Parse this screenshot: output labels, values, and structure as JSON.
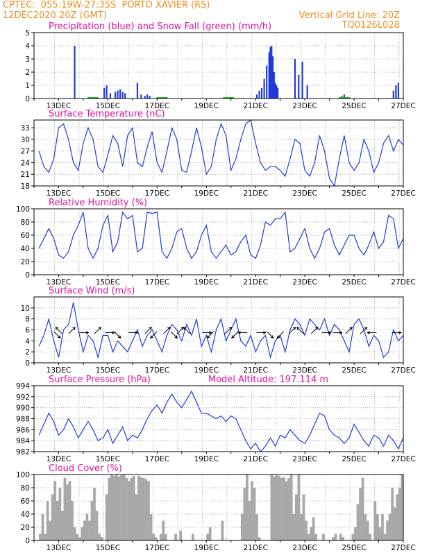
{
  "header": {
    "line1_left": "CPTEC:  055:19W-27:35S  PORTO XAVIER (RS)",
    "line2_left": "12DEC2020 20Z (GMT)",
    "line2_right": "Vertical Grid Line: 20Z",
    "line3_right": "TQ0126L028"
  },
  "colors": {
    "header": "#f08c1e",
    "title": "#e0109f",
    "line": "#1f3bd6",
    "precip": "#1f3bd6",
    "snow": "#22b422",
    "cloud": "#a8a8a8",
    "grid": "#9a9a9a"
  },
  "x_ticks": [
    "13DEC",
    "15DEC",
    "17DEC",
    "19DEC",
    "21DEC",
    "23DEC",
    "25DEC",
    "27DEC"
  ],
  "chart_data": [
    {
      "type": "bar",
      "title": "Precipitation (blue) and Snow Fall (green) (mm/h)",
      "ylim": [
        0,
        5
      ],
      "yticks": [
        0,
        1,
        2,
        3,
        4,
        5
      ],
      "series": [
        {
          "name": "precipitation",
          "x": [
            13.65,
            14.85,
            14.95,
            15.1,
            15.3,
            15.4,
            15.5,
            15.6,
            15.7,
            16.2,
            16.35,
            16.5,
            16.6,
            16.7,
            21.05,
            21.15,
            21.25,
            21.35,
            21.45,
            21.55,
            21.6,
            21.65,
            21.7,
            21.75,
            21.8,
            21.85,
            21.9,
            22.6,
            22.75,
            22.9,
            23.1,
            24.5,
            24.6,
            26.6,
            26.7,
            26.8
          ],
          "values": [
            4.0,
            0.8,
            1.0,
            0.4,
            0.5,
            0.6,
            0.7,
            0.5,
            0.4,
            1.2,
            0.3,
            0.2,
            0.3,
            0.2,
            0.3,
            0.6,
            0.8,
            1.5,
            2.5,
            3.5,
            3.9,
            4.0,
            3.2,
            2.0,
            1.2,
            1.0,
            0.8,
            3.0,
            1.8,
            2.8,
            1.0,
            0.2,
            0.3,
            0.6,
            1.0,
            1.2
          ]
        },
        {
          "name": "snow",
          "x": [
            14.4,
            17.2,
            19.9,
            24.6
          ],
          "values": [
            0.05,
            0.05,
            0.05,
            0.05
          ]
        }
      ]
    },
    {
      "type": "line",
      "title": "Surface Temperature (nC)",
      "ylim": [
        18,
        35
      ],
      "yticks": [
        18,
        21,
        24,
        27,
        30,
        33
      ],
      "x": [
        12.2,
        12.4,
        12.6,
        12.8,
        13.0,
        13.2,
        13.4,
        13.6,
        13.8,
        14.0,
        14.2,
        14.4,
        14.6,
        14.8,
        15.0,
        15.2,
        15.4,
        15.6,
        15.8,
        16.0,
        16.2,
        16.4,
        16.6,
        16.8,
        17.0,
        17.2,
        17.4,
        17.6,
        17.8,
        18.0,
        18.2,
        18.4,
        18.6,
        18.8,
        19.0,
        19.2,
        19.4,
        19.6,
        19.8,
        20.0,
        20.2,
        20.4,
        20.6,
        20.8,
        21.0,
        21.2,
        21.4,
        21.6,
        21.8,
        22.0,
        22.2,
        22.4,
        22.6,
        22.8,
        23.0,
        23.2,
        23.4,
        23.6,
        23.8,
        24.0,
        24.2,
        24.4,
        24.6,
        24.8,
        25.0,
        25.2,
        25.4,
        25.6,
        25.8,
        26.0,
        26.2,
        26.4,
        26.6,
        26.8,
        27.0
      ],
      "values": [
        27,
        23,
        21.5,
        25,
        33,
        34,
        30,
        24,
        22,
        29,
        33,
        30,
        23,
        21.5,
        26,
        31,
        29,
        23,
        31,
        33,
        24,
        23,
        28,
        32,
        24,
        21.5,
        27,
        33,
        30,
        22,
        21.5,
        27,
        33,
        28,
        21,
        23,
        30,
        34,
        31,
        22,
        25,
        30,
        34,
        35,
        29,
        24,
        22,
        23,
        23,
        22,
        20.5,
        25,
        30,
        29,
        22,
        20.5,
        24,
        31,
        27,
        20,
        18,
        25,
        31,
        24,
        22,
        24,
        30,
        27,
        21.5,
        24,
        29,
        31,
        27,
        30,
        28.5
      ]
    },
    {
      "type": "line",
      "title": "Relative Humidity (%)",
      "ylim": [
        0,
        100
      ],
      "yticks": [
        0,
        20,
        40,
        60,
        80,
        100
      ],
      "x": [
        12.2,
        12.4,
        12.6,
        12.8,
        13.0,
        13.2,
        13.4,
        13.6,
        13.8,
        14.0,
        14.2,
        14.4,
        14.6,
        14.8,
        15.0,
        15.2,
        15.4,
        15.6,
        15.8,
        16.0,
        16.2,
        16.4,
        16.6,
        16.8,
        17.0,
        17.2,
        17.4,
        17.6,
        17.8,
        18.0,
        18.2,
        18.4,
        18.6,
        18.8,
        19.0,
        19.2,
        19.4,
        19.6,
        19.8,
        20.0,
        20.2,
        20.4,
        20.6,
        20.8,
        21.0,
        21.2,
        21.4,
        21.6,
        21.8,
        22.0,
        22.2,
        22.4,
        22.6,
        22.8,
        23.0,
        23.2,
        23.4,
        23.6,
        23.8,
        24.0,
        24.2,
        24.4,
        24.6,
        24.8,
        25.0,
        25.2,
        25.4,
        25.6,
        25.8,
        26.0,
        26.2,
        26.4,
        26.6,
        26.8,
        27.0
      ],
      "values": [
        40,
        55,
        70,
        55,
        30,
        25,
        35,
        60,
        75,
        95,
        40,
        25,
        40,
        75,
        90,
        35,
        50,
        95,
        85,
        90,
        35,
        40,
        95,
        93,
        95,
        35,
        25,
        40,
        65,
        70,
        40,
        25,
        35,
        60,
        75,
        35,
        25,
        35,
        45,
        30,
        35,
        50,
        60,
        30,
        25,
        45,
        80,
        75,
        85,
        85,
        95,
        35,
        40,
        55,
        70,
        40,
        25,
        40,
        65,
        70,
        45,
        30,
        45,
        60,
        60,
        40,
        30,
        45,
        65,
        40,
        50,
        90,
        85,
        40,
        55
      ]
    },
    {
      "type": "line",
      "title": "Surface Wind (m/s)",
      "ylim": [
        0,
        12
      ],
      "yticks": [
        0,
        2,
        4,
        6,
        8,
        10
      ],
      "x": [
        12.2,
        12.4,
        12.6,
        12.8,
        13.0,
        13.2,
        13.4,
        13.6,
        13.8,
        14.0,
        14.2,
        14.4,
        14.6,
        14.8,
        15.0,
        15.2,
        15.4,
        15.6,
        15.8,
        16.0,
        16.2,
        16.4,
        16.6,
        16.8,
        17.0,
        17.2,
        17.4,
        17.6,
        17.8,
        18.0,
        18.2,
        18.4,
        18.6,
        18.8,
        19.0,
        19.2,
        19.4,
        19.6,
        19.8,
        20.0,
        20.2,
        20.4,
        20.6,
        20.8,
        21.0,
        21.2,
        21.4,
        21.6,
        21.8,
        22.0,
        22.2,
        22.4,
        22.6,
        22.8,
        23.0,
        23.2,
        23.4,
        23.6,
        23.8,
        24.0,
        24.2,
        24.4,
        24.6,
        24.8,
        25.0,
        25.2,
        25.4,
        25.6,
        25.8,
        26.0,
        26.2,
        26.4,
        26.6,
        26.8,
        27.0
      ],
      "values": [
        3,
        5,
        8,
        4,
        1,
        6,
        7,
        11,
        6,
        2,
        5,
        4,
        1,
        5,
        5,
        2,
        4,
        3,
        2,
        4,
        6,
        3,
        5,
        6,
        4,
        2,
        5,
        7,
        6,
        4,
        7,
        5,
        8,
        3,
        5,
        2,
        6,
        8,
        4,
        6,
        8,
        4,
        3,
        5,
        2,
        4,
        5,
        1,
        4,
        5,
        2,
        6,
        8,
        7,
        5,
        8,
        7,
        6,
        8,
        5,
        7,
        6,
        4,
        2,
        7,
        8,
        6,
        3,
        5,
        4,
        1,
        2,
        6,
        4,
        5
      ],
      "arrows": [
        {
          "day": 12.85,
          "dir": 135
        },
        {
          "day": 13.1,
          "dir": 315
        },
        {
          "day": 13.45,
          "dir": 45
        },
        {
          "day": 13.9,
          "dir": 90
        },
        {
          "day": 14.5,
          "dir": 45
        },
        {
          "day": 14.95,
          "dir": 90
        },
        {
          "day": 15.3,
          "dir": 135
        },
        {
          "day": 15.9,
          "dir": 90
        },
        {
          "day": 16.55,
          "dir": 45
        },
        {
          "day": 16.95,
          "dir": 225
        },
        {
          "day": 17.3,
          "dir": 45
        },
        {
          "day": 17.6,
          "dir": 135
        },
        {
          "day": 17.85,
          "dir": 45
        },
        {
          "day": 18.3,
          "dir": 315
        },
        {
          "day": 18.9,
          "dir": 90
        },
        {
          "day": 19.25,
          "dir": 225
        },
        {
          "day": 19.8,
          "dir": 45
        },
        {
          "day": 20.25,
          "dir": 225
        },
        {
          "day": 20.6,
          "dir": 270
        },
        {
          "day": 21.1,
          "dir": 90
        },
        {
          "day": 21.5,
          "dir": 135
        },
        {
          "day": 22.1,
          "dir": 225
        },
        {
          "day": 22.4,
          "dir": 45
        },
        {
          "day": 22.9,
          "dir": 315
        },
        {
          "day": 23.3,
          "dir": 45
        },
        {
          "day": 23.75,
          "dir": 90
        },
        {
          "day": 24.2,
          "dir": 90
        },
        {
          "day": 24.7,
          "dir": 45
        },
        {
          "day": 25.3,
          "dir": 45
        },
        {
          "day": 25.85,
          "dir": 270
        },
        {
          "day": 26.6,
          "dir": 90
        }
      ]
    },
    {
      "type": "line",
      "title": "Surface Pressure (hPa)",
      "subtitle": "Model Altitude: 197.114 m",
      "ylim": [
        982,
        994
      ],
      "yticks": [
        982,
        984,
        986,
        988,
        990,
        992,
        994
      ],
      "x": [
        12.2,
        12.4,
        12.6,
        12.8,
        13.0,
        13.2,
        13.4,
        13.6,
        13.8,
        14.0,
        14.2,
        14.4,
        14.6,
        14.8,
        15.0,
        15.2,
        15.4,
        15.6,
        15.8,
        16.0,
        16.2,
        16.4,
        16.6,
        16.8,
        17.0,
        17.2,
        17.4,
        17.6,
        17.8,
        18.0,
        18.2,
        18.4,
        18.6,
        18.8,
        19.0,
        19.2,
        19.4,
        19.6,
        19.8,
        20.0,
        20.2,
        20.4,
        20.6,
        20.8,
        21.0,
        21.2,
        21.4,
        21.6,
        21.8,
        22.0,
        22.2,
        22.4,
        22.6,
        22.8,
        23.0,
        23.2,
        23.4,
        23.6,
        23.8,
        24.0,
        24.2,
        24.4,
        24.6,
        24.8,
        25.0,
        25.2,
        25.4,
        25.6,
        25.8,
        26.0,
        26.2,
        26.4,
        26.6,
        26.8,
        27.0
      ],
      "values": [
        985,
        987,
        989,
        987.5,
        985,
        986,
        988,
        986.5,
        984.5,
        986,
        987.5,
        986,
        984,
        984.5,
        986,
        983.5,
        985,
        986.5,
        984,
        985,
        984.5,
        986,
        988,
        989.5,
        990.5,
        989,
        991,
        992.5,
        991,
        990,
        991.5,
        993,
        991,
        989,
        989,
        988.5,
        988,
        988.5,
        987.5,
        988.5,
        988,
        986,
        984,
        982.5,
        983.5,
        982,
        983,
        984.5,
        983,
        985,
        984.5,
        986,
        985,
        984,
        983.5,
        985,
        987,
        989,
        988.5,
        986,
        985,
        984.5,
        983.5,
        984.5,
        987,
        985.5,
        984,
        983,
        985,
        984.5,
        983,
        985,
        984,
        982.5,
        984.5
      ]
    },
    {
      "type": "area",
      "title": "Cloud Cover (%)",
      "ylim": [
        0,
        100
      ],
      "yticks": [
        0,
        20,
        40,
        60,
        80,
        100
      ],
      "x": [
        12.0,
        12.1,
        12.2,
        12.3,
        12.4,
        12.5,
        12.6,
        12.7,
        12.8,
        12.9,
        13.0,
        13.1,
        13.2,
        13.3,
        13.4,
        13.5,
        13.6,
        13.7,
        13.8,
        13.9,
        14.0,
        14.1,
        14.2,
        14.3,
        14.4,
        14.5,
        14.6,
        14.7,
        14.8,
        14.9,
        15.0,
        15.1,
        15.2,
        15.3,
        15.4,
        15.5,
        15.6,
        15.7,
        15.8,
        15.9,
        16.0,
        16.1,
        16.2,
        16.3,
        16.4,
        16.5,
        16.6,
        16.7,
        16.8,
        16.9,
        17.0,
        17.1,
        17.2,
        17.3,
        17.4,
        17.5,
        17.6,
        17.7,
        17.8,
        17.9,
        18.0,
        18.1,
        18.2,
        18.3,
        18.4,
        18.5,
        18.6,
        18.7,
        18.8,
        18.9,
        19.0,
        19.1,
        19.2,
        19.3,
        19.4,
        19.5,
        19.6,
        19.7,
        19.8,
        19.9,
        20.0,
        20.1,
        20.2,
        20.3,
        20.4,
        20.5,
        20.6,
        20.7,
        20.8,
        20.9,
        21.0,
        21.1,
        21.2,
        21.3,
        21.4,
        21.5,
        21.6,
        21.7,
        21.8,
        21.9,
        22.0,
        22.1,
        22.2,
        22.3,
        22.4,
        22.5,
        22.6,
        22.7,
        22.8,
        22.9,
        23.0,
        23.1,
        23.2,
        23.3,
        23.4,
        23.5,
        23.6,
        23.7,
        23.8,
        23.9,
        24.0,
        24.1,
        24.2,
        24.3,
        24.4,
        24.5,
        24.6,
        24.7,
        24.8,
        24.9,
        25.0,
        25.1,
        25.2,
        25.3,
        25.4,
        25.5,
        25.6,
        25.7,
        25.8,
        25.9,
        26.0,
        26.1,
        26.2,
        26.3,
        26.4,
        26.5,
        26.6,
        26.7,
        26.8,
        26.9
      ],
      "values": [
        0,
        0,
        10,
        40,
        10,
        60,
        30,
        70,
        90,
        60,
        80,
        45,
        95,
        85,
        90,
        60,
        20,
        10,
        5,
        20,
        30,
        40,
        30,
        60,
        80,
        45,
        10,
        5,
        0,
        70,
        95,
        100,
        98,
        100,
        97,
        99,
        100,
        95,
        90,
        95,
        98,
        70,
        98,
        96,
        95,
        93,
        90,
        40,
        10,
        5,
        0,
        10,
        30,
        10,
        0,
        0,
        0,
        10,
        0,
        15,
        0,
        0,
        0,
        0,
        10,
        0,
        0,
        0,
        0,
        0,
        10,
        20,
        0,
        0,
        0,
        0,
        30,
        0,
        0,
        0,
        0,
        0,
        0,
        0,
        40,
        80,
        100,
        60,
        90,
        80,
        40,
        5,
        0,
        0,
        0,
        0,
        100,
        97,
        99,
        98,
        95,
        96,
        90,
        95,
        100,
        40,
        70,
        100,
        40,
        70,
        30,
        10,
        20,
        35,
        10,
        0,
        0,
        10,
        0,
        0,
        0,
        5,
        10,
        0,
        10,
        5,
        0,
        0,
        0,
        10,
        20,
        55,
        80,
        95,
        40,
        30,
        10,
        0,
        60,
        40,
        20,
        40,
        10,
        30,
        40,
        80,
        50,
        70,
        80,
        100
      ]
    }
  ]
}
